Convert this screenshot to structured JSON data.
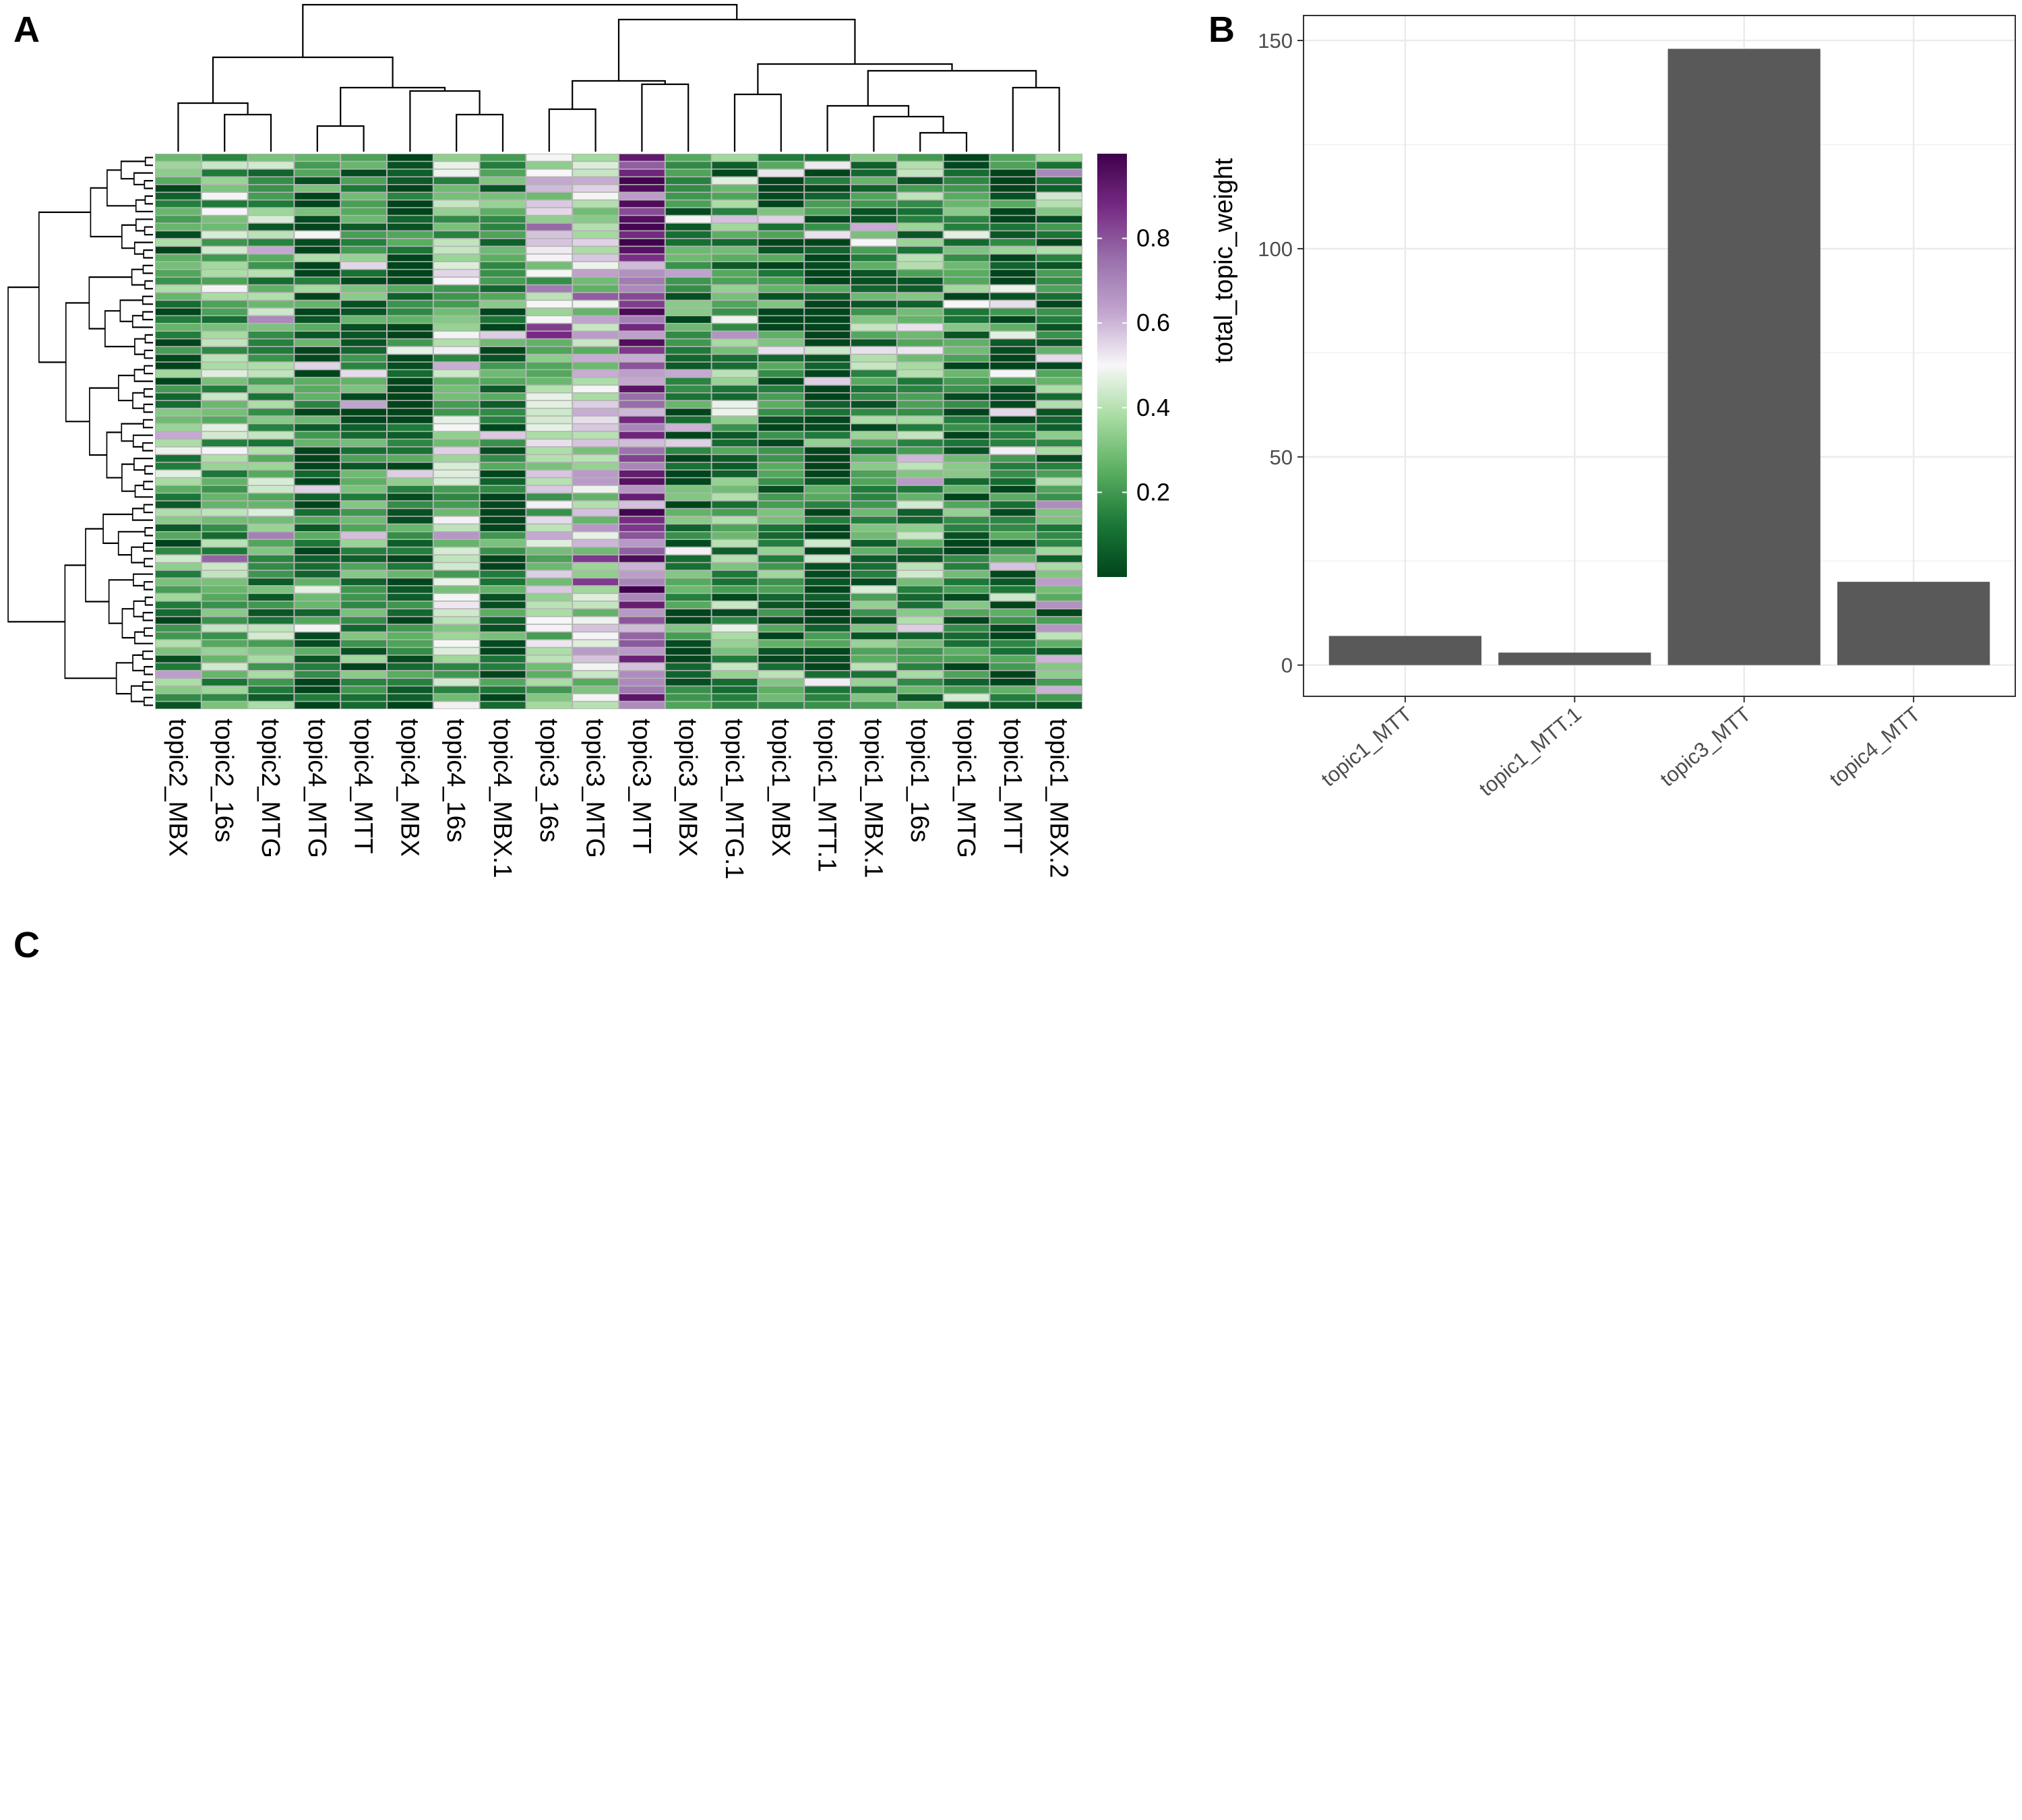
{
  "panels": {
    "a_label": "A",
    "b_label": "B",
    "c_label": "C"
  },
  "chart_data": [
    {
      "type": "heatmap",
      "panel": "A",
      "columns": [
        "topic2_MBX",
        "topic2_16s",
        "topic2_MTG",
        "topic4_MTG",
        "topic4_MTT",
        "topic4_MBX",
        "topic4_16s",
        "topic4_MBX.1",
        "topic3_16s",
        "topic3_MTG",
        "topic3_MTT",
        "topic3_MBX",
        "topic1_MTG.1",
        "topic1_MBX",
        "topic1_MTT.1",
        "topic1_MBX.1",
        "topic1_16s",
        "topic1_MTG",
        "topic1_MTT",
        "topic1_MBX.2"
      ],
      "row_count": 72,
      "column_means": [
        0.18,
        0.3,
        0.25,
        0.1,
        0.16,
        0.08,
        0.35,
        0.12,
        0.38,
        0.45,
        0.78,
        0.13,
        0.22,
        0.12,
        0.05,
        0.22,
        0.24,
        0.14,
        0.07,
        0.2
      ],
      "color_scale": {
        "min": 0,
        "max": 1,
        "ticks": [
          0.2,
          0.4,
          0.6,
          0.8
        ],
        "tick_labels": [
          "0.2",
          "0.4",
          "0.6",
          "0.8"
        ],
        "colors": [
          "#00441b",
          "#1b7837",
          "#5aae61",
          "#a6dba0",
          "#f7f7f7",
          "#c2a5cf",
          "#9970ab",
          "#762a83",
          "#40004b"
        ]
      },
      "column_dendrogram": true,
      "row_dendrogram": true
    },
    {
      "type": "bar",
      "panel": "B",
      "categories": [
        "topic1_MTT",
        "topic1_MTT.1",
        "topic3_MTT",
        "topic4_MTT"
      ],
      "values": [
        7,
        3,
        148,
        20
      ],
      "ylabel": "total_topic_weight",
      "xlabel": "",
      "ylim": [
        -7.5,
        156
      ],
      "yticks": [
        0,
        50,
        100,
        150
      ],
      "ytick_labels": [
        "0",
        "50",
        "100",
        "150"
      ],
      "bar_color": "#595959",
      "grid": true,
      "theme": "bw"
    }
  ]
}
